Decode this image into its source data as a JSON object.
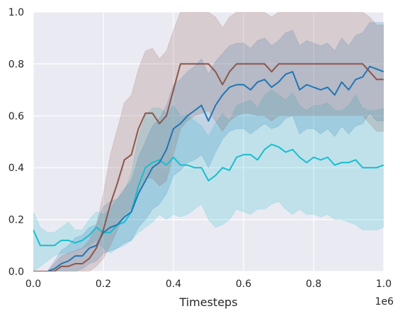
{
  "chart_data": {
    "type": "line",
    "xlabel": "Timesteps",
    "ylabel": "",
    "x_offset_text": "1e6",
    "xlim": [
      0,
      1.0
    ],
    "ylim": [
      0,
      1.0
    ],
    "x_ticks": [
      0.0,
      0.2,
      0.4,
      0.6,
      0.8,
      1.0
    ],
    "x_tick_labels": [
      "0.0",
      "0.2",
      "0.4",
      "0.6",
      "0.8",
      "1.0"
    ],
    "y_ticks": [
      0.0,
      0.2,
      0.4,
      0.6,
      0.8,
      1.0
    ],
    "y_tick_labels": [
      "0.0",
      "0.2",
      "0.4",
      "0.6",
      "0.8",
      "1.0"
    ],
    "grid": true,
    "background": "#eaeaf2",
    "legend": "none",
    "x": [
      0.0,
      0.02,
      0.04,
      0.06,
      0.08,
      0.1,
      0.12,
      0.14,
      0.16,
      0.18,
      0.2,
      0.22,
      0.24,
      0.26,
      0.28,
      0.3,
      0.32,
      0.34,
      0.36,
      0.38,
      0.4,
      0.42,
      0.44,
      0.46,
      0.48,
      0.5,
      0.52,
      0.54,
      0.56,
      0.58,
      0.6,
      0.62,
      0.64,
      0.66,
      0.68,
      0.7,
      0.72,
      0.74,
      0.76,
      0.78,
      0.8,
      0.82,
      0.84,
      0.86,
      0.88,
      0.9,
      0.92,
      0.94,
      0.96,
      0.98,
      1.0
    ],
    "series": [
      {
        "color": "#17becf",
        "values": [
          0.16,
          0.1,
          0.1,
          0.1,
          0.12,
          0.12,
          0.11,
          0.12,
          0.14,
          0.17,
          0.15,
          0.15,
          0.18,
          0.19,
          0.23,
          0.33,
          0.4,
          0.42,
          0.43,
          0.41,
          0.44,
          0.41,
          0.41,
          0.4,
          0.4,
          0.35,
          0.37,
          0.4,
          0.39,
          0.44,
          0.45,
          0.45,
          0.43,
          0.47,
          0.49,
          0.48,
          0.46,
          0.47,
          0.44,
          0.42,
          0.44,
          0.43,
          0.44,
          0.41,
          0.42,
          0.42,
          0.43,
          0.4,
          0.4,
          0.4,
          0.41
        ],
        "lower": [
          0.0,
          0.02,
          0.04,
          0.06,
          0.07,
          0.07,
          0.08,
          0.09,
          0.1,
          0.12,
          0.09,
          0.07,
          0.09,
          0.1,
          0.12,
          0.15,
          0.17,
          0.19,
          0.22,
          0.2,
          0.22,
          0.21,
          0.22,
          0.24,
          0.26,
          0.2,
          0.17,
          0.18,
          0.2,
          0.24,
          0.23,
          0.22,
          0.24,
          0.24,
          0.26,
          0.27,
          0.24,
          0.22,
          0.24,
          0.22,
          0.22,
          0.21,
          0.22,
          0.2,
          0.2,
          0.19,
          0.18,
          0.16,
          0.16,
          0.16,
          0.17
        ],
        "upper": [
          0.23,
          0.17,
          0.15,
          0.15,
          0.17,
          0.19,
          0.16,
          0.16,
          0.2,
          0.23,
          0.22,
          0.24,
          0.28,
          0.31,
          0.38,
          0.52,
          0.6,
          0.63,
          0.63,
          0.61,
          0.64,
          0.6,
          0.6,
          0.58,
          0.56,
          0.52,
          0.57,
          0.61,
          0.58,
          0.64,
          0.65,
          0.66,
          0.63,
          0.68,
          0.7,
          0.68,
          0.66,
          0.69,
          0.64,
          0.62,
          0.64,
          0.64,
          0.65,
          0.62,
          0.62,
          0.64,
          0.68,
          0.63,
          0.62,
          0.62,
          0.63
        ]
      },
      {
        "color": "#1f77b4",
        "values": [
          0.0,
          0.0,
          0.0,
          0.01,
          0.03,
          0.04,
          0.06,
          0.06,
          0.09,
          0.1,
          0.15,
          0.17,
          0.18,
          0.21,
          0.23,
          0.3,
          0.35,
          0.4,
          0.42,
          0.47,
          0.55,
          0.57,
          0.6,
          0.62,
          0.64,
          0.58,
          0.64,
          0.68,
          0.71,
          0.72,
          0.72,
          0.7,
          0.73,
          0.74,
          0.71,
          0.73,
          0.76,
          0.77,
          0.7,
          0.72,
          0.71,
          0.7,
          0.71,
          0.68,
          0.73,
          0.7,
          0.74,
          0.75,
          0.79,
          0.78,
          0.77
        ],
        "lower": [
          0.0,
          0.0,
          0.0,
          0.0,
          0.0,
          0.0,
          0.0,
          0.01,
          0.03,
          0.04,
          0.07,
          0.08,
          0.09,
          0.11,
          0.12,
          0.17,
          0.2,
          0.24,
          0.26,
          0.3,
          0.37,
          0.39,
          0.42,
          0.43,
          0.45,
          0.4,
          0.46,
          0.51,
          0.54,
          0.55,
          0.55,
          0.53,
          0.55,
          0.57,
          0.55,
          0.56,
          0.59,
          0.6,
          0.53,
          0.55,
          0.55,
          0.53,
          0.55,
          0.52,
          0.56,
          0.53,
          0.56,
          0.57,
          0.61,
          0.58,
          0.58
        ],
        "upper": [
          0.0,
          0.0,
          0.0,
          0.04,
          0.08,
          0.1,
          0.13,
          0.14,
          0.17,
          0.18,
          0.25,
          0.27,
          0.28,
          0.32,
          0.35,
          0.44,
          0.5,
          0.56,
          0.59,
          0.64,
          0.72,
          0.74,
          0.77,
          0.79,
          0.82,
          0.76,
          0.81,
          0.84,
          0.87,
          0.88,
          0.88,
          0.86,
          0.89,
          0.9,
          0.87,
          0.89,
          0.92,
          0.93,
          0.87,
          0.89,
          0.88,
          0.87,
          0.88,
          0.85,
          0.9,
          0.87,
          0.91,
          0.92,
          0.96,
          0.96,
          0.96
        ]
      },
      {
        "color": "#8c564b",
        "values": [
          0.0,
          0.0,
          0.0,
          0.0,
          0.02,
          0.02,
          0.03,
          0.03,
          0.05,
          0.09,
          0.16,
          0.26,
          0.34,
          0.43,
          0.45,
          0.55,
          0.61,
          0.61,
          0.57,
          0.6,
          0.7,
          0.8,
          0.8,
          0.8,
          0.8,
          0.8,
          0.77,
          0.72,
          0.77,
          0.8,
          0.8,
          0.8,
          0.8,
          0.8,
          0.77,
          0.8,
          0.8,
          0.8,
          0.8,
          0.8,
          0.8,
          0.8,
          0.8,
          0.8,
          0.8,
          0.8,
          0.8,
          0.8,
          0.77,
          0.74,
          0.74
        ],
        "lower": [
          0.0,
          0.0,
          0.0,
          0.0,
          0.0,
          0.0,
          0.0,
          0.0,
          0.0,
          0.02,
          0.05,
          0.1,
          0.16,
          0.22,
          0.24,
          0.31,
          0.36,
          0.36,
          0.33,
          0.35,
          0.45,
          0.55,
          0.58,
          0.6,
          0.61,
          0.62,
          0.58,
          0.54,
          0.58,
          0.6,
          0.61,
          0.61,
          0.6,
          0.6,
          0.58,
          0.6,
          0.6,
          0.6,
          0.6,
          0.6,
          0.6,
          0.6,
          0.6,
          0.6,
          0.6,
          0.6,
          0.6,
          0.6,
          0.57,
          0.54,
          0.54
        ],
        "upper": [
          0.0,
          0.0,
          0.0,
          0.03,
          0.06,
          0.07,
          0.08,
          0.09,
          0.12,
          0.18,
          0.3,
          0.45,
          0.55,
          0.65,
          0.68,
          0.78,
          0.85,
          0.86,
          0.82,
          0.85,
          0.93,
          1.0,
          1.0,
          1.0,
          1.0,
          1.0,
          0.98,
          0.94,
          0.98,
          1.0,
          1.0,
          1.0,
          1.0,
          1.0,
          0.98,
          1.0,
          1.0,
          1.0,
          1.0,
          1.0,
          1.0,
          1.0,
          1.0,
          1.0,
          1.0,
          1.0,
          1.0,
          1.0,
          0.98,
          0.95,
          0.95
        ]
      }
    ]
  }
}
